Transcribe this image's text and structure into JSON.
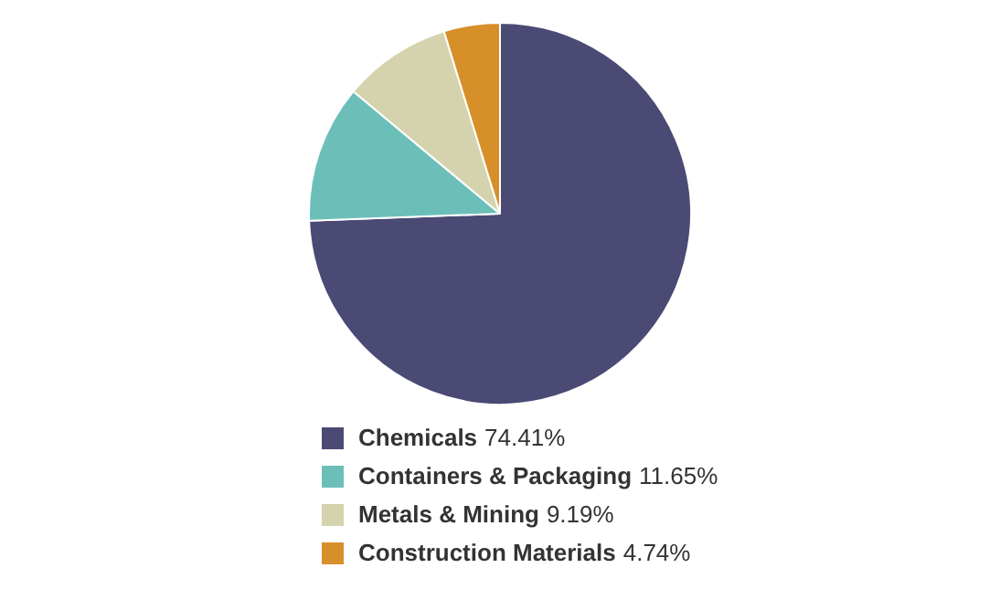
{
  "chart_data": {
    "type": "pie",
    "categories": [
      "Chemicals",
      "Containers & Packaging",
      "Metals & Mining",
      "Construction Materials"
    ],
    "values": [
      74.41,
      11.65,
      9.19,
      4.74
    ],
    "colors": [
      "#4a4a75",
      "#6cbfb9",
      "#d4d3ad",
      "#d78f2a"
    ],
    "value_labels": [
      "74.41%",
      "11.65%",
      "9.19%",
      "4.74%"
    ],
    "legend": "bottom"
  }
}
